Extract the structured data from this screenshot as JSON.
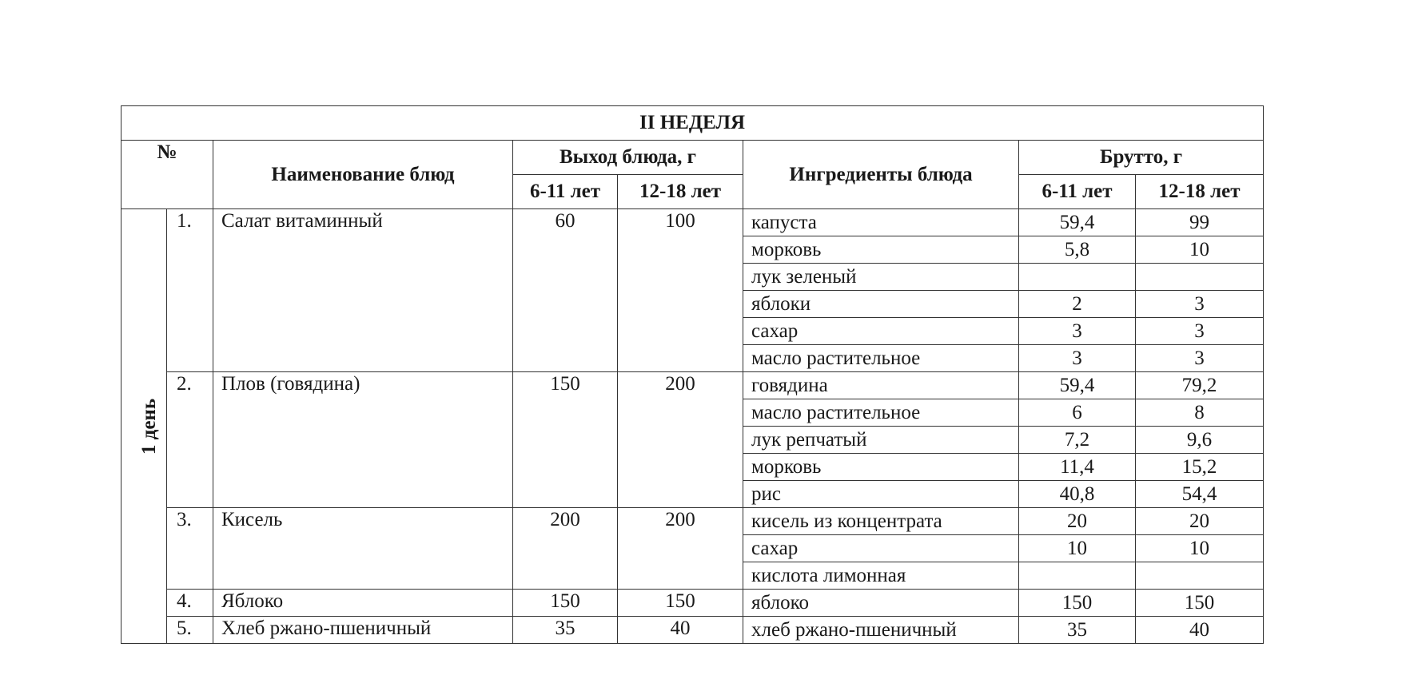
{
  "title": "II  НЕДЕЛЯ",
  "headers": {
    "number": "№",
    "dish_name": "Наименование блюд",
    "yield": "Выход блюда, г",
    "ingredients": "Ингредиенты блюда",
    "gross": "Брутто, г",
    "age_young": "6-11 лет",
    "age_old": "12-18 лет"
  },
  "day_label": "1 день",
  "dishes": [
    {
      "num": "1.",
      "name": "Салат витаминный",
      "yield_young": "60",
      "yield_old": "100",
      "ingredients": [
        {
          "name": "капуста",
          "young": "59,4",
          "old": "99"
        },
        {
          "name": "морковь",
          "young": "5,8",
          "old": "10"
        },
        {
          "name": "лук зеленый",
          "young": "",
          "old": ""
        },
        {
          "name": "яблоки",
          "young": "2",
          "old": "3"
        },
        {
          "name": "сахар",
          "young": "3",
          "old": "3"
        },
        {
          "name": "масло растительное",
          "young": "3",
          "old": "3"
        }
      ]
    },
    {
      "num": "2.",
      "name": "Плов (говядина)",
      "yield_young": "150",
      "yield_old": "200",
      "ingredients": [
        {
          "name": "говядина",
          "young": "59,4",
          "old": "79,2"
        },
        {
          "name": "масло растительное",
          "young": "6",
          "old": "8"
        },
        {
          "name": "лук репчатый",
          "young": "7,2",
          "old": "9,6"
        },
        {
          "name": "морковь",
          "young": "11,4",
          "old": "15,2"
        },
        {
          "name": "рис",
          "young": "40,8",
          "old": "54,4"
        }
      ]
    },
    {
      "num": "3.",
      "name": "Кисель",
      "yield_young": "200",
      "yield_old": "200",
      "ingredients": [
        {
          "name": "кисель из концентрата",
          "young": "20",
          "old": "20"
        },
        {
          "name": "сахар",
          "young": "10",
          "old": "10"
        },
        {
          "name": "кислота лимонная",
          "young": "",
          "old": ""
        }
      ]
    },
    {
      "num": "4.",
      "name": "Яблоко",
      "yield_young": "150",
      "yield_old": "150",
      "ingredients": [
        {
          "name": "яблоко",
          "young": "150",
          "old": "150"
        }
      ]
    },
    {
      "num": "5.",
      "name": "Хлеб ржано-пшеничный",
      "yield_young": "35",
      "yield_old": "40",
      "ingredients": [
        {
          "name": "хлеб ржано-пшеничный",
          "young": "35",
          "old": "40"
        }
      ]
    }
  ]
}
